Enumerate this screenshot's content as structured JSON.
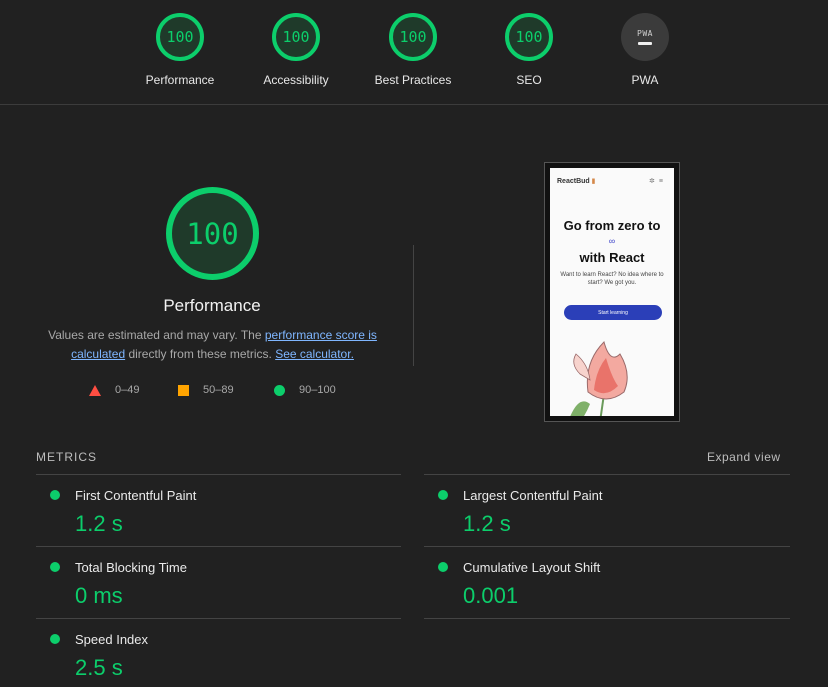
{
  "top_gauges": [
    {
      "score": "100",
      "label": "Performance"
    },
    {
      "score": "100",
      "label": "Accessibility"
    },
    {
      "score": "100",
      "label": "Best Practices"
    },
    {
      "score": "100",
      "label": "SEO"
    },
    {
      "score": "",
      "label": "PWA",
      "badge_text": "PWA"
    }
  ],
  "main_score": {
    "score": "100",
    "title": "Performance"
  },
  "description": {
    "prefix": "Values are estimated and may vary. The",
    "link1": "performance score is calculated",
    "middle": "directly from these metrics.",
    "link2": "See calculator."
  },
  "legend": [
    {
      "range": "0–49",
      "color": "#ff4e42",
      "shape": "triangle"
    },
    {
      "range": "50–89",
      "color": "#ffa400",
      "shape": "square"
    },
    {
      "range": "90–100",
      "color": "#0cce6b",
      "shape": "circle"
    }
  ],
  "screenshot": {
    "brand": "ReactBud",
    "headline_line1": "Go from zero to",
    "infinity": "∞",
    "headline_line2": "with React",
    "subtext": "Want to learn React? No idea where to start? We got you.",
    "button": "Start learning"
  },
  "metrics_section": {
    "heading": "METRICS",
    "expand_label": "Expand view",
    "items": [
      {
        "name": "First Contentful Paint",
        "value": "1.2 s"
      },
      {
        "name": "Largest Contentful Paint",
        "value": "1.2 s"
      },
      {
        "name": "Total Blocking Time",
        "value": "0 ms"
      },
      {
        "name": "Cumulative Layout Shift",
        "value": "0.001"
      },
      {
        "name": "Speed Index",
        "value": "2.5 s"
      }
    ]
  },
  "colors": {
    "pass": "#0cce6b",
    "average": "#ffa400",
    "fail": "#ff4e42",
    "background": "#212121"
  }
}
